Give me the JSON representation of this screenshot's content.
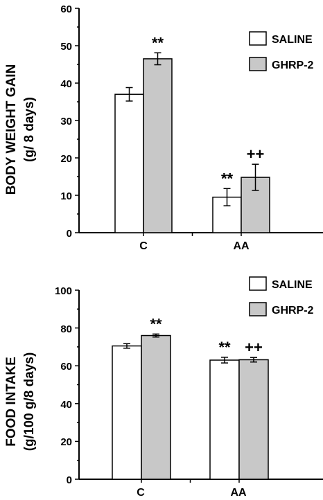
{
  "colors": {
    "saline": "#ffffff",
    "ghrp2": "#c8c8c8",
    "stroke": "#000000"
  },
  "chart_data": [
    {
      "type": "bar",
      "ylabel_line1": "BODY WEIGHT GAIN",
      "ylabel_line2": "(g/ 8 days)",
      "categories": [
        "C",
        "AA"
      ],
      "ylim": [
        0,
        60
      ],
      "yticks": [
        "0",
        "10",
        "20",
        "30",
        "40",
        "50",
        "60"
      ],
      "series": [
        {
          "name": "SALINE",
          "values": [
            37,
            9.5
          ],
          "errors": [
            1.8,
            2.3
          ],
          "annotations": [
            "",
            "**"
          ]
        },
        {
          "name": "GHRP-2",
          "values": [
            46.5,
            14.8
          ],
          "errors": [
            1.6,
            3.5
          ],
          "annotations": [
            "**",
            "++"
          ]
        }
      ],
      "legend": "top-right"
    },
    {
      "type": "bar",
      "ylabel_line1": "FOOD INTAKE",
      "ylabel_line2": "(g/100 g/8 days)",
      "categories": [
        "C",
        "AA"
      ],
      "ylim": [
        0,
        100
      ],
      "yticks": [
        "0",
        "20",
        "40",
        "60",
        "80",
        "100"
      ],
      "series": [
        {
          "name": "SALINE",
          "values": [
            70.5,
            63
          ],
          "errors": [
            1.2,
            1.5
          ],
          "annotations": [
            "",
            "**"
          ]
        },
        {
          "name": "GHRP-2",
          "values": [
            76,
            63.2
          ],
          "errors": [
            0.8,
            1.2
          ],
          "annotations": [
            "**",
            "++"
          ]
        }
      ],
      "legend": "top-right"
    }
  ]
}
